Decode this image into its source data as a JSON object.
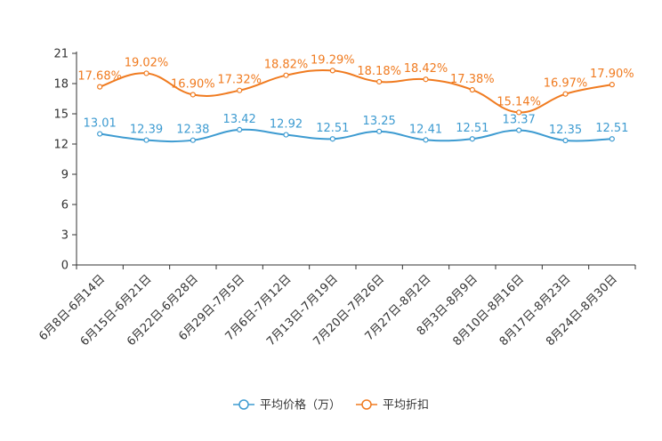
{
  "chart_data": {
    "type": "line",
    "categories": [
      "6月8日-6月14日",
      "6月15日-6月21日",
      "6月22日-6月28日",
      "6月29日-7月5日",
      "7月6日-7月12日",
      "7月13日-7月19日",
      "7月20日-7月26日",
      "7月27日-8月2日",
      "8月3日-8月9日",
      "8月10日-8月16日",
      "8月17日-8月23日",
      "8月24日-8月30日"
    ],
    "ylim": [
      0,
      21
    ],
    "yticks": [
      0,
      3,
      6,
      9,
      12,
      15,
      18,
      21
    ],
    "smooth": true,
    "legend_position": "bottom",
    "series": [
      {
        "name": "平均价格（万）",
        "color": "#3d9bd1",
        "values": [
          13.01,
          12.39,
          12.38,
          13.42,
          12.92,
          12.51,
          13.25,
          12.41,
          12.51,
          13.37,
          12.35,
          12.51
        ],
        "labels": [
          "13.01",
          "12.39",
          "12.38",
          "13.42",
          "12.92",
          "12.51",
          "13.25",
          "12.41",
          "12.51",
          "13.37",
          "12.35",
          "12.51"
        ]
      },
      {
        "name": "平均折扣",
        "color": "#f07b20",
        "values": [
          17.68,
          19.02,
          16.9,
          17.32,
          18.82,
          19.29,
          18.18,
          18.42,
          17.38,
          15.14,
          16.97,
          17.9
        ],
        "labels": [
          "17.68%",
          "19.02%",
          "16.90%",
          "17.32%",
          "18.82%",
          "19.29%",
          "18.18%",
          "18.42%",
          "17.38%",
          "15.14%",
          "16.97%",
          "17.90%"
        ]
      }
    ]
  }
}
